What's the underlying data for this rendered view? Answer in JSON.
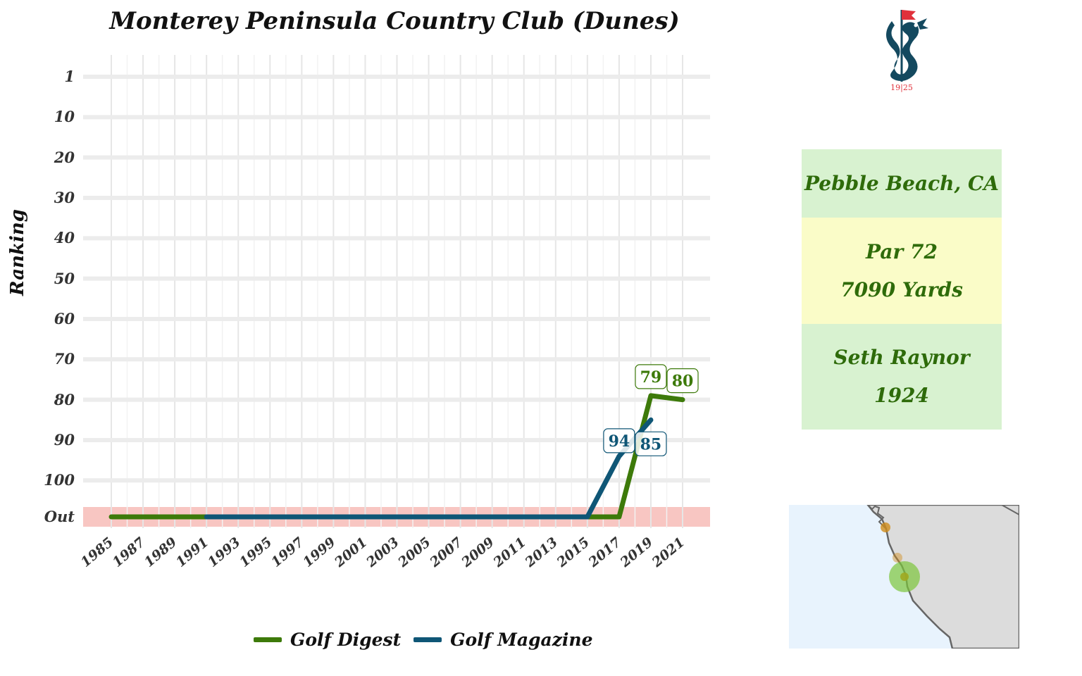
{
  "chart_data": {
    "type": "line",
    "title": "Monterey Peninsula Country Club (Dunes)",
    "xlabel": "",
    "ylabel": "Ranking",
    "x_ticks": [
      "1985",
      "1987",
      "1989",
      "1991",
      "1993",
      "1995",
      "1997",
      "1999",
      "2001",
      "2003",
      "2005",
      "2007",
      "2009",
      "2011",
      "2013",
      "2015",
      "2017",
      "2019",
      "2021"
    ],
    "y_ticks": [
      "1",
      "10",
      "20",
      "30",
      "40",
      "50",
      "60",
      "70",
      "80",
      "90",
      "100",
      "Out"
    ],
    "y_reversed": true,
    "out_band_color": "#f8c6c2",
    "grid": true,
    "legend_position": "bottom",
    "series": [
      {
        "name": "Golf Digest",
        "color": "#3d7a0a",
        "x": [
          1985,
          2017,
          2019,
          2021
        ],
        "values": [
          "Out",
          "Out",
          79,
          80
        ],
        "labels": [
          null,
          null,
          "79",
          "80"
        ]
      },
      {
        "name": "Golf Magazine",
        "color": "#0f5676",
        "x": [
          1991,
          2015,
          2017,
          2019
        ],
        "values": [
          "Out",
          "Out",
          94,
          85
        ],
        "labels": [
          null,
          null,
          "94",
          "85"
        ]
      }
    ]
  },
  "course_info": {
    "location": "Pebble Beach, CA",
    "par": "Par 72",
    "yardage": "7090 Yards",
    "architect": "Seth Raynor",
    "year": "1924"
  },
  "logo": {
    "year_text": "19|25",
    "flag_color": "#e0313b",
    "dragon_color": "#14495f"
  },
  "map": {
    "ocean_color": "#e8f3fd",
    "land_color": "#dcdcdc",
    "highlight_color": "#7cc43a",
    "marker_color": "#d08c1a"
  }
}
